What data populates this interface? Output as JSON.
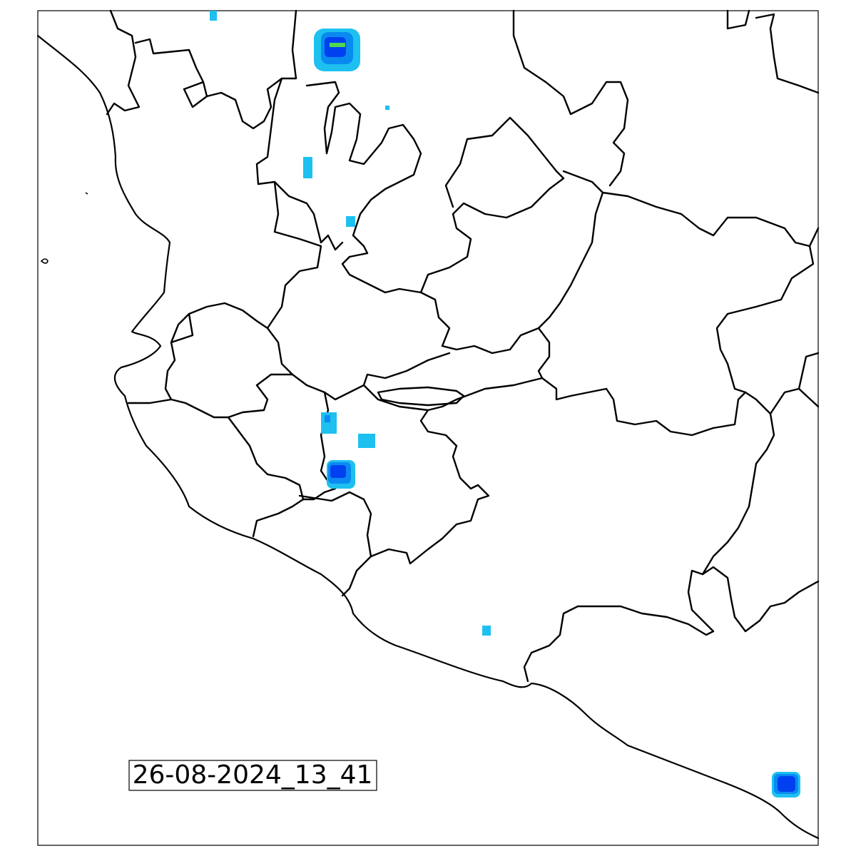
{
  "timestamp": "26-08-2024_13_41",
  "colors": {
    "light_cyan": "#1ec0f0",
    "mid_blue": "#0a8af0",
    "deep_blue": "#0040f0",
    "green": "#50d850",
    "border": "#000000",
    "background": "#ffffff"
  },
  "precipitation_cells": [
    {
      "id": "north-cell",
      "intensity": [
        "light",
        "moderate",
        "heavy",
        "peak"
      ]
    },
    {
      "id": "north-edge-speck",
      "intensity": [
        "light"
      ]
    },
    {
      "id": "small-speck",
      "intensity": [
        "light"
      ]
    },
    {
      "id": "west-strip",
      "intensity": [
        "light"
      ]
    },
    {
      "id": "central-speck",
      "intensity": [
        "light"
      ]
    },
    {
      "id": "central-west-patch",
      "intensity": [
        "light",
        "moderate"
      ]
    },
    {
      "id": "central-patch",
      "intensity": [
        "light"
      ]
    },
    {
      "id": "central-core-cell",
      "intensity": [
        "light",
        "moderate",
        "heavy"
      ]
    },
    {
      "id": "south-speck",
      "intensity": [
        "light"
      ]
    },
    {
      "id": "southeast-cell",
      "intensity": [
        "light",
        "moderate",
        "heavy"
      ]
    }
  ]
}
